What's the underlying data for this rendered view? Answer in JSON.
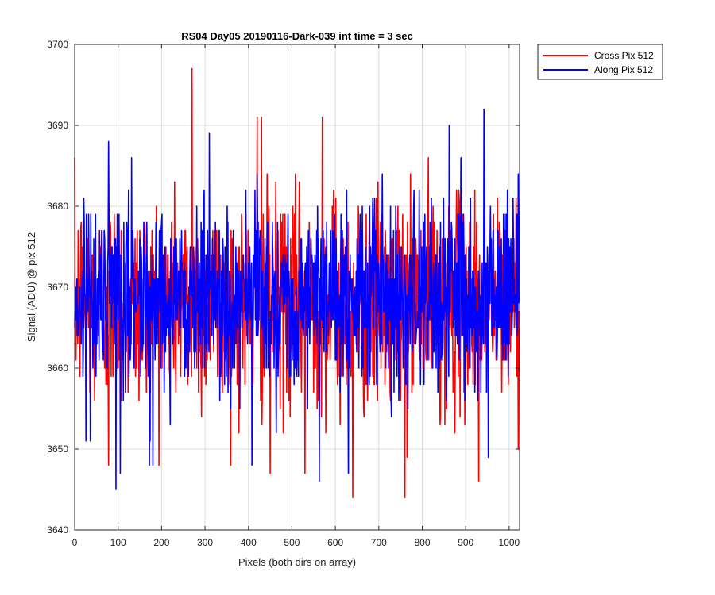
{
  "chart_data": {
    "type": "line",
    "title": "RS04 Day05 20190116-Dark-039 int time = 3 sec",
    "xlabel": "Pixels (both dirs on array)",
    "ylabel": "Signal (ADU) @ pix 512",
    "xlim": [
      0,
      1024
    ],
    "ylim": [
      3640,
      3700
    ],
    "xticks": [
      0,
      100,
      200,
      300,
      400,
      500,
      600,
      700,
      800,
      900,
      1000
    ],
    "yticks": [
      3640,
      3650,
      3660,
      3670,
      3680,
      3690,
      3700
    ],
    "grid": true,
    "legend_position": "outside-top-right",
    "series": [
      {
        "name": "Cross Pix 512",
        "color": "#ff0000",
        "mean": 3668,
        "std": 6.5,
        "n_points": 1024,
        "notable_points": [
          [
            270,
            3697
          ],
          [
            420,
            3691
          ],
          [
            430,
            3691
          ],
          [
            570,
            3691
          ],
          [
            450,
            3647
          ],
          [
            530,
            3647
          ],
          [
            640,
            3644
          ],
          [
            760,
            3644
          ],
          [
            78,
            3648
          ],
          [
            930,
            3646
          ]
        ]
      },
      {
        "name": "Along Pix 512",
        "color": "#0000ff",
        "mean": 3669,
        "std": 5.8,
        "n_points": 1024,
        "notable_points": [
          [
            942,
            3692
          ],
          [
            862,
            3690
          ],
          [
            310,
            3689
          ],
          [
            95,
            3645
          ],
          [
            563,
            3646
          ],
          [
            105,
            3647
          ],
          [
            408,
            3648
          ],
          [
            180,
            3648
          ],
          [
            630,
            3647
          ],
          [
            952,
            3649
          ]
        ]
      }
    ]
  }
}
